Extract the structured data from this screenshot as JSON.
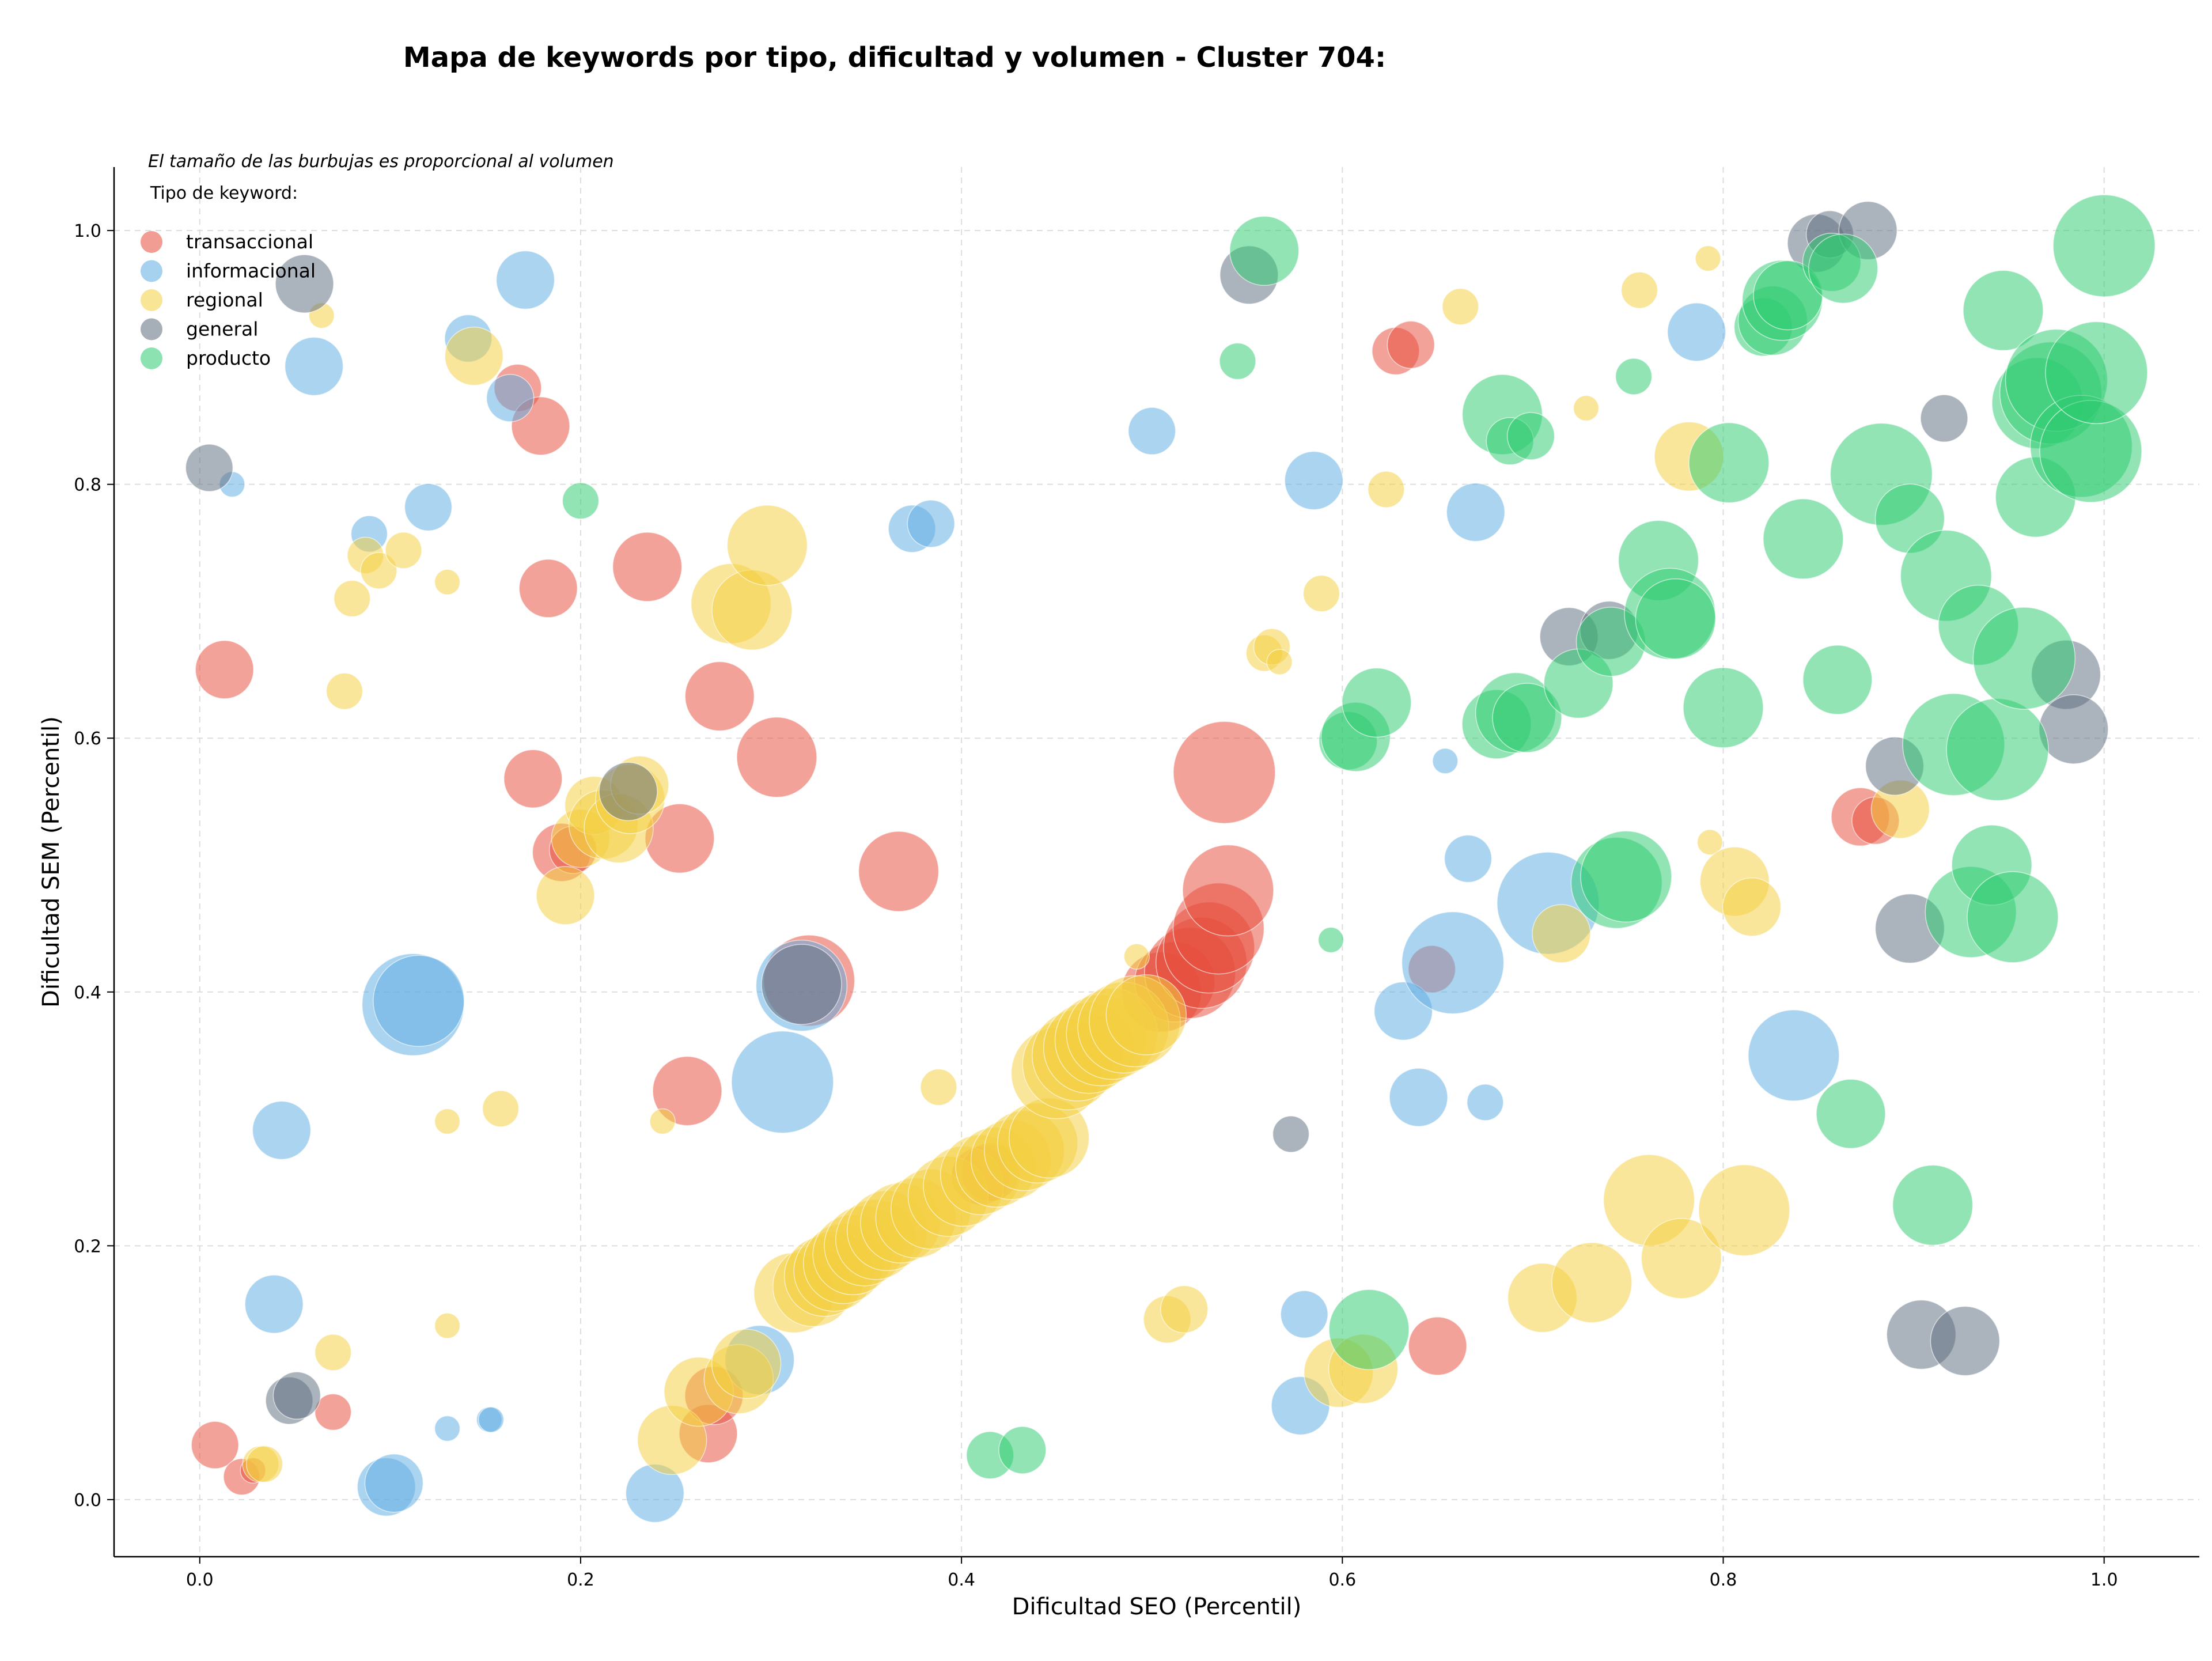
{
  "chart_data": {
    "type": "scatter",
    "title": "Mapa de keywords por tipo, dificultad y volumen - Cluster 704:",
    "xlabel": "Dificultad SEO (Percentil)",
    "ylabel": "Dificultad SEM (Percentil)",
    "xlim": [
      -0.045,
      1.05
    ],
    "ylim": [
      -0.045,
      1.05
    ],
    "xticks": [
      "0.0",
      "0.2",
      "0.4",
      "0.6",
      "0.8",
      "1.0"
    ],
    "yticks": [
      "0.0",
      "0.2",
      "0.4",
      "0.6",
      "0.8",
      "1.0"
    ],
    "grid": true,
    "size_note": "El tamaño de las burbujas es proporcional al volumen",
    "legend_title": "Tipo de keyword:",
    "legend_position": "top-left",
    "series": [
      {
        "name": "transaccional",
        "color": "#e74c3c",
        "points": [
          [
            0.013,
            0.654,
            6
          ],
          [
            0.008,
            0.043,
            5
          ],
          [
            0.022,
            0.018,
            4
          ],
          [
            0.028,
            0.023,
            3
          ],
          [
            0.07,
            0.069,
            4
          ],
          [
            0.167,
            0.876,
            5
          ],
          [
            0.179,
            0.846,
            6
          ],
          [
            0.183,
            0.718,
            6
          ],
          [
            0.175,
            0.568,
            6
          ],
          [
            0.19,
            0.51,
            6
          ],
          [
            0.196,
            0.512,
            5
          ],
          [
            0.235,
            0.735,
            7
          ],
          [
            0.252,
            0.521,
            7
          ],
          [
            0.273,
            0.633,
            7
          ],
          [
            0.303,
            0.585,
            8
          ],
          [
            0.256,
            0.322,
            7
          ],
          [
            0.267,
            0.052,
            6
          ],
          [
            0.27,
            0.082,
            6
          ],
          [
            0.32,
            0.409,
            9
          ],
          [
            0.367,
            0.495,
            8
          ],
          [
            0.41,
            0.255,
            6
          ],
          [
            0.415,
            0.258,
            6
          ],
          [
            0.505,
            0.4,
            8
          ],
          [
            0.512,
            0.408,
            8
          ],
          [
            0.52,
            0.415,
            9
          ],
          [
            0.526,
            0.423,
            9
          ],
          [
            0.53,
            0.435,
            9
          ],
          [
            0.535,
            0.45,
            9
          ],
          [
            0.54,
            0.48,
            9
          ],
          [
            0.538,
            0.573,
            10
          ],
          [
            0.628,
            0.905,
            5
          ],
          [
            0.636,
            0.91,
            5
          ],
          [
            0.647,
            0.418,
            5
          ],
          [
            0.65,
            0.121,
            6
          ],
          [
            0.872,
            0.538,
            6
          ],
          [
            0.88,
            0.535,
            5
          ]
        ]
      },
      {
        "name": "informacional",
        "color": "#5dade2",
        "points": [
          [
            0.017,
            0.8,
            3
          ],
          [
            0.06,
            0.893,
            6
          ],
          [
            0.043,
            0.291,
            6
          ],
          [
            0.039,
            0.154,
            6
          ],
          [
            0.089,
            0.761,
            4
          ],
          [
            0.12,
            0.782,
            5
          ],
          [
            0.141,
            0.915,
            5
          ],
          [
            0.163,
            0.868,
            5
          ],
          [
            0.171,
            0.961,
            6
          ],
          [
            0.112,
            0.39,
            10
          ],
          [
            0.115,
            0.393,
            9
          ],
          [
            0.098,
            0.01,
            6
          ],
          [
            0.102,
            0.013,
            6
          ],
          [
            0.13,
            0.056,
            3
          ],
          [
            0.152,
            0.063,
            3
          ],
          [
            0.153,
            0.063,
            3
          ],
          [
            0.239,
            0.005,
            6
          ],
          [
            0.294,
            0.11,
            7
          ],
          [
            0.306,
            0.329,
            10
          ],
          [
            0.316,
            0.405,
            9
          ],
          [
            0.374,
            0.765,
            5
          ],
          [
            0.384,
            0.769,
            5
          ],
          [
            0.5,
            0.842,
            5
          ],
          [
            0.585,
            0.803,
            6
          ],
          [
            0.58,
            0.146,
            5
          ],
          [
            0.578,
            0.074,
            6
          ],
          [
            0.632,
            0.385,
            6
          ],
          [
            0.64,
            0.317,
            6
          ],
          [
            0.654,
            0.582,
            3
          ],
          [
            0.658,
            0.423,
            10
          ],
          [
            0.666,
            0.505,
            5
          ],
          [
            0.67,
            0.778,
            6
          ],
          [
            0.675,
            0.313,
            4
          ],
          [
            0.708,
            0.47,
            10
          ],
          [
            0.786,
            0.92,
            6
          ],
          [
            0.837,
            0.35,
            9
          ]
        ]
      },
      {
        "name": "regional",
        "color": "#f4d03f",
        "points": [
          [
            0.032,
            0.028,
            4
          ],
          [
            0.034,
            0.028,
            4
          ],
          [
            0.064,
            0.933,
            3
          ],
          [
            0.07,
            0.116,
            4
          ],
          [
            0.076,
            0.637,
            4
          ],
          [
            0.08,
            0.71,
            4
          ],
          [
            0.087,
            0.744,
            4
          ],
          [
            0.094,
            0.732,
            4
          ],
          [
            0.107,
            0.748,
            4
          ],
          [
            0.13,
            0.723,
            3
          ],
          [
            0.13,
            0.298,
            3
          ],
          [
            0.13,
            0.137,
            3
          ],
          [
            0.144,
            0.901,
            6
          ],
          [
            0.158,
            0.308,
            4
          ],
          [
            0.192,
            0.476,
            6
          ],
          [
            0.2,
            0.521,
            6
          ],
          [
            0.207,
            0.547,
            6
          ],
          [
            0.212,
            0.532,
            7
          ],
          [
            0.22,
            0.529,
            7
          ],
          [
            0.226,
            0.552,
            7
          ],
          [
            0.231,
            0.563,
            6
          ],
          [
            0.243,
            0.298,
            3
          ],
          [
            0.248,
            0.047,
            7
          ],
          [
            0.262,
            0.085,
            7
          ],
          [
            0.279,
            0.706,
            8
          ],
          [
            0.29,
            0.701,
            8
          ],
          [
            0.283,
            0.095,
            7
          ],
          [
            0.287,
            0.107,
            7
          ],
          [
            0.298,
            0.752,
            8
          ],
          [
            0.312,
            0.163,
            8
          ],
          [
            0.322,
            0.168,
            8
          ],
          [
            0.328,
            0.176,
            8
          ],
          [
            0.333,
            0.18,
            8
          ],
          [
            0.338,
            0.186,
            8
          ],
          [
            0.343,
            0.193,
            8
          ],
          [
            0.349,
            0.2,
            8
          ],
          [
            0.355,
            0.205,
            8
          ],
          [
            0.361,
            0.212,
            8
          ],
          [
            0.368,
            0.218,
            8
          ],
          [
            0.376,
            0.222,
            8
          ],
          [
            0.384,
            0.229,
            8
          ],
          [
            0.393,
            0.239,
            8
          ],
          [
            0.401,
            0.247,
            8
          ],
          [
            0.41,
            0.256,
            8
          ],
          [
            0.418,
            0.262,
            8
          ],
          [
            0.426,
            0.268,
            8
          ],
          [
            0.433,
            0.275,
            8
          ],
          [
            0.44,
            0.281,
            8
          ],
          [
            0.446,
            0.285,
            8
          ],
          [
            0.388,
            0.325,
            4
          ],
          [
            0.45,
            0.336,
            9
          ],
          [
            0.456,
            0.343,
            9
          ],
          [
            0.461,
            0.35,
            9
          ],
          [
            0.467,
            0.356,
            9
          ],
          [
            0.473,
            0.362,
            9
          ],
          [
            0.479,
            0.367,
            9
          ],
          [
            0.485,
            0.372,
            9
          ],
          [
            0.491,
            0.377,
            9
          ],
          [
            0.497,
            0.382,
            8
          ],
          [
            0.492,
            0.428,
            3
          ],
          [
            0.508,
            0.142,
            5
          ],
          [
            0.517,
            0.15,
            5
          ],
          [
            0.559,
            0.667,
            4
          ],
          [
            0.563,
            0.672,
            4
          ],
          [
            0.567,
            0.66,
            3
          ],
          [
            0.589,
            0.714,
            4
          ],
          [
            0.598,
            0.1,
            7
          ],
          [
            0.611,
            0.103,
            7
          ],
          [
            0.623,
            0.796,
            4
          ],
          [
            0.662,
            0.94,
            4
          ],
          [
            0.705,
            0.159,
            7
          ],
          [
            0.715,
            0.446,
            6
          ],
          [
            0.728,
            0.86,
            3
          ],
          [
            0.731,
            0.171,
            8
          ],
          [
            0.756,
            0.953,
            4
          ],
          [
            0.761,
            0.236,
            9
          ],
          [
            0.778,
            0.19,
            8
          ],
          [
            0.782,
            0.822,
            7
          ],
          [
            0.792,
            0.978,
            3
          ],
          [
            0.793,
            0.518,
            3
          ],
          [
            0.806,
            0.487,
            7
          ],
          [
            0.811,
            0.228,
            9
          ],
          [
            0.815,
            0.467,
            6
          ],
          [
            0.893,
            0.544,
            6
          ]
        ]
      },
      {
        "name": "general",
        "color": "#5d6d7e",
        "points": [
          [
            0.005,
            0.813,
            5
          ],
          [
            0.055,
            0.958,
            6
          ],
          [
            0.047,
            0.078,
            5
          ],
          [
            0.051,
            0.082,
            5
          ],
          [
            0.225,
            0.558,
            6
          ],
          [
            0.316,
            0.406,
            8
          ],
          [
            0.551,
            0.965,
            6
          ],
          [
            0.573,
            0.288,
            4
          ],
          [
            0.719,
            0.68,
            6
          ],
          [
            0.74,
            0.685,
            6
          ],
          [
            0.849,
            0.99,
            6
          ],
          [
            0.856,
            0.997,
            5
          ],
          [
            0.876,
            1.0,
            6
          ],
          [
            0.89,
            0.578,
            6
          ],
          [
            0.898,
            0.45,
            7
          ],
          [
            0.904,
            0.13,
            7
          ],
          [
            0.916,
            0.852,
            5
          ],
          [
            0.927,
            0.125,
            7
          ],
          [
            0.98,
            0.65,
            7
          ],
          [
            0.984,
            0.607,
            7
          ]
        ]
      },
      {
        "name": "producto",
        "color": "#2ecc71",
        "points": [
          [
            0.2,
            0.787,
            4
          ],
          [
            0.415,
            0.035,
            5
          ],
          [
            0.432,
            0.039,
            5
          ],
          [
            0.545,
            0.897,
            4
          ],
          [
            0.559,
            0.984,
            7
          ],
          [
            0.594,
            0.441,
            3
          ],
          [
            0.603,
            0.598,
            6
          ],
          [
            0.607,
            0.601,
            7
          ],
          [
            0.614,
            0.134,
            8
          ],
          [
            0.618,
            0.628,
            7
          ],
          [
            0.684,
            0.855,
            8
          ],
          [
            0.688,
            0.834,
            5
          ],
          [
            0.699,
            0.838,
            5
          ],
          [
            0.681,
            0.611,
            7
          ],
          [
            0.691,
            0.62,
            8
          ],
          [
            0.697,
            0.616,
            7
          ],
          [
            0.724,
            0.643,
            7
          ],
          [
            0.741,
            0.676,
            7
          ],
          [
            0.744,
            0.486,
            9
          ],
          [
            0.749,
            0.491,
            9
          ],
          [
            0.753,
            0.885,
            4
          ],
          [
            0.766,
            0.74,
            8
          ],
          [
            0.772,
            0.698,
            9
          ],
          [
            0.775,
            0.694,
            8
          ],
          [
            0.8,
            0.624,
            8
          ],
          [
            0.803,
            0.817,
            8
          ],
          [
            0.821,
            0.924,
            6
          ],
          [
            0.826,
            0.929,
            7
          ],
          [
            0.831,
            0.945,
            8
          ],
          [
            0.834,
            0.949,
            7
          ],
          [
            0.842,
            0.757,
            8
          ],
          [
            0.857,
            0.975,
            6
          ],
          [
            0.863,
            0.97,
            7
          ],
          [
            0.86,
            0.646,
            7
          ],
          [
            0.867,
            0.304,
            7
          ],
          [
            0.883,
            0.808,
            10
          ],
          [
            0.898,
            0.773,
            7
          ],
          [
            0.91,
            0.232,
            8
          ],
          [
            0.917,
            0.728,
            9
          ],
          [
            0.921,
            0.595,
            10
          ],
          [
            0.934,
            0.689,
            8
          ],
          [
            0.93,
            0.463,
            9
          ],
          [
            0.941,
            0.5,
            8
          ],
          [
            0.944,
            0.591,
            10
          ],
          [
            0.947,
            0.937,
            8
          ],
          [
            0.952,
            0.459,
            9
          ],
          [
            0.958,
            0.663,
            10
          ],
          [
            0.964,
            0.79,
            8
          ],
          [
            0.965,
            0.864,
            9
          ],
          [
            0.972,
            0.872,
            10
          ],
          [
            0.975,
            0.882,
            10
          ],
          [
            0.988,
            0.83,
            10
          ],
          [
            0.993,
            0.826,
            10
          ],
          [
            0.996,
            0.888,
            10
          ],
          [
            1.0,
            0.988,
            10
          ]
        ]
      }
    ]
  }
}
